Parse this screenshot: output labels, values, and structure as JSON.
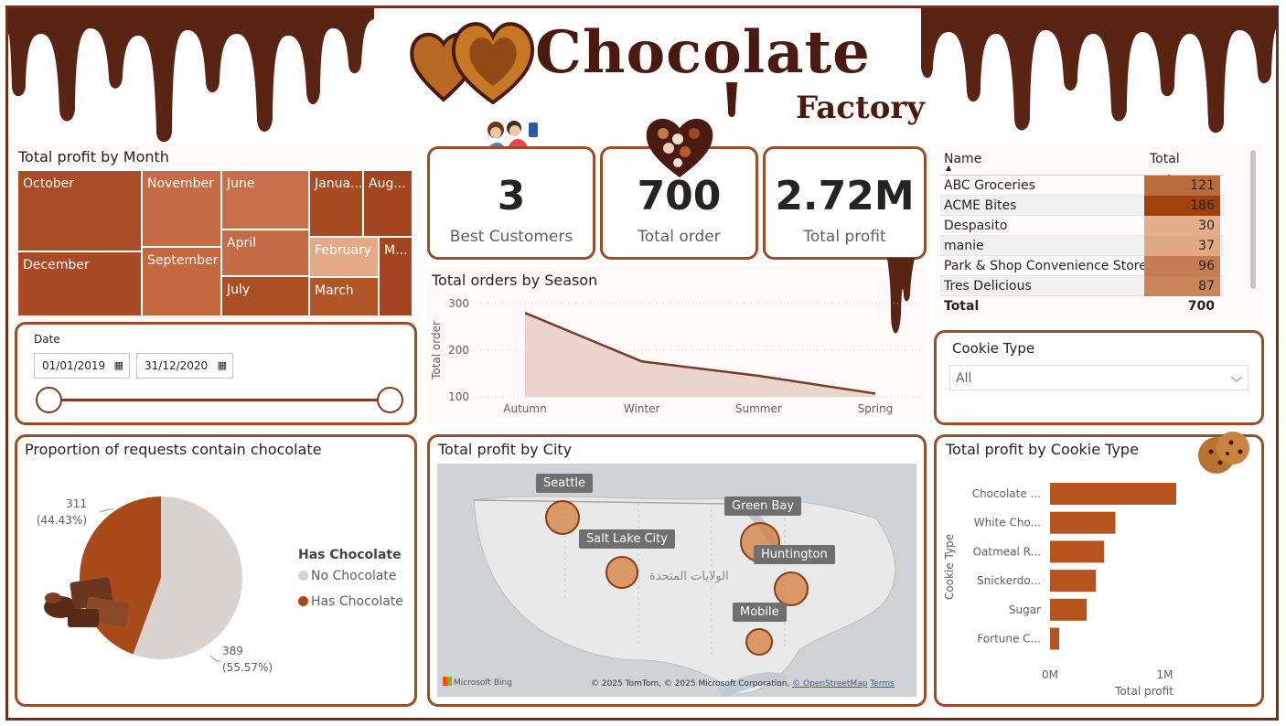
{
  "header": {
    "logo_title": "Chocolate",
    "logo_subtitle": "Factory"
  },
  "colors": {
    "brand_dark": "#4a1a10",
    "border": "#9b4d27",
    "bar": "#b5541f",
    "pie_has": "#a84a1a",
    "pie_no": "#d8d3cf"
  },
  "treemap": {
    "title": "Total profit by Month",
    "tiles": [
      "October",
      "November",
      "June",
      "Janua...",
      "Aug...",
      "December",
      "September",
      "April",
      "February",
      "M...",
      "July",
      "March"
    ]
  },
  "date_slicer": {
    "label": "Date",
    "start": "01/01/2019",
    "end": "31/12/2020"
  },
  "kpis": [
    {
      "value": "3",
      "label": "Best Customers"
    },
    {
      "value": "700",
      "label": "Total order"
    },
    {
      "value": "2.72M",
      "label": "Total profit"
    }
  ],
  "table": {
    "headers": [
      "Name",
      "Total order"
    ],
    "rows": [
      {
        "name": "ABC Groceries",
        "value": "121"
      },
      {
        "name": "ACME Bites",
        "value": "186"
      },
      {
        "name": "Despasito",
        "value": "30"
      },
      {
        "name": "manie",
        "value": "37"
      },
      {
        "name": "Park & Shop Convenience Stores",
        "value": "96"
      },
      {
        "name": "Tres Delicious",
        "value": "87"
      }
    ],
    "total_label": "Total",
    "total_value": "700"
  },
  "cookie_slicer": {
    "label": "Cookie Type",
    "selected": "All"
  },
  "season_chart": {
    "title": "Total orders by Season"
  },
  "pie_chart": {
    "title": "Proportion of requests contain chocolate",
    "legend_title": "Has Chocolate"
  },
  "map": {
    "title": "Total profit by City",
    "cities": [
      "Seattle",
      "Salt Lake City",
      "Green Bay",
      "Huntington",
      "Mobile"
    ],
    "country_label": "الولايات المتحدة",
    "attribution_logo": "Microsoft Bing",
    "attribution": "© 2025 TomTom, © 2025 Microsoft Corporation,",
    "osm_link": "© OpenStreetMap",
    "terms_link": "Terms"
  },
  "cookie_chart": {
    "title": "Total profit by Cookie Type"
  },
  "chart_data": [
    {
      "type": "line",
      "title": "Total orders by Season",
      "x": [
        "Autumn",
        "Winter",
        "Summer",
        "Spring"
      ],
      "series": [
        {
          "values": [
            280,
            176,
            145,
            107
          ]
        }
      ],
      "ylabel": "Total order",
      "yticks": [
        "100",
        "200",
        "300"
      ],
      "ylim": [
        100,
        300
      ]
    },
    {
      "type": "pie",
      "title": "Proportion of requests contain chocolate",
      "legend_title": "Has Chocolate",
      "categories": [
        "No Chocolate",
        "Has Chocolate"
      ],
      "values": [
        389,
        311
      ],
      "data_labels": [
        "389",
        "(55.57%)",
        "311",
        "(44.43%)"
      ]
    },
    {
      "type": "bar",
      "title": "Total profit by Cookie Type",
      "categories": [
        "Chocolate ...",
        "White Cho...",
        "Oatmeal R...",
        "Snickerdo...",
        "Sugar",
        "Fortune C..."
      ],
      "values": [
        1100000,
        570000,
        470000,
        400000,
        320000,
        80000
      ],
      "xlabel": "Total profit",
      "ylabel": "Cookie Type",
      "xticks": [
        "0M",
        "1M"
      ],
      "xlim": [
        0,
        1100000
      ]
    }
  ]
}
